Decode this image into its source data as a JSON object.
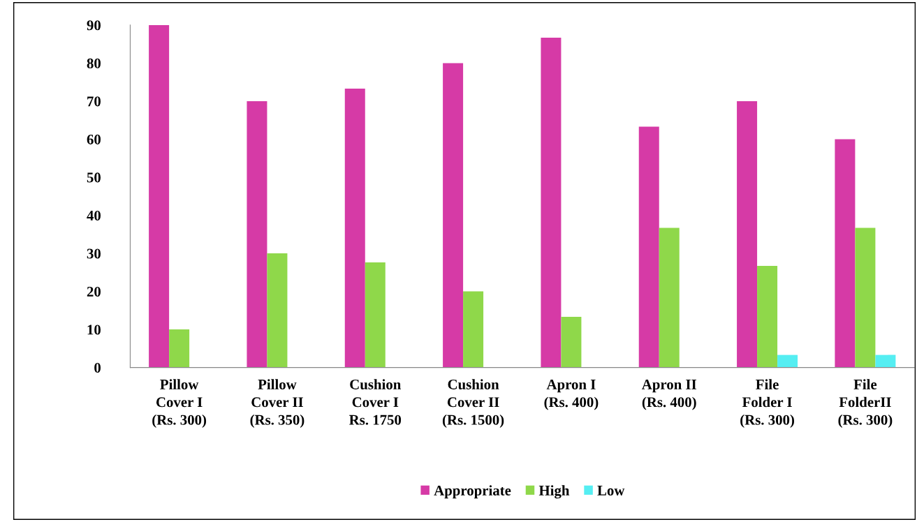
{
  "chart_data": {
    "type": "bar",
    "categories": [
      "Pillow\nCover I\n(Rs. 300)",
      "Pillow\nCover II\n(Rs. 350)",
      "Cushion\nCover I\nRs. 1750",
      "Cushion\nCover II\n(Rs. 1500)",
      "Apron I\n(Rs. 400)",
      "Apron II\n(Rs. 400)",
      "File\nFolder I\n(Rs. 300)",
      "File\nFolderII\n(Rs. 300)"
    ],
    "series": [
      {
        "name": "Appropriate",
        "color": "#d63aa6",
        "values": [
          90,
          70,
          73.3,
          80,
          86.7,
          63.3,
          70,
          60
        ]
      },
      {
        "name": "High",
        "color": "#8fd84a",
        "values": [
          10,
          30,
          27.6,
          20,
          13.3,
          36.7,
          26.7,
          36.7
        ]
      },
      {
        "name": "Low",
        "color": "#55eef2",
        "values": [
          null,
          null,
          null,
          null,
          null,
          null,
          3.3,
          3.3
        ]
      }
    ],
    "ylim": [
      0,
      90
    ],
    "yticks": [
      0,
      10,
      20,
      30,
      40,
      50,
      60,
      70,
      80,
      90
    ],
    "grid": false,
    "legend": "bottom"
  }
}
